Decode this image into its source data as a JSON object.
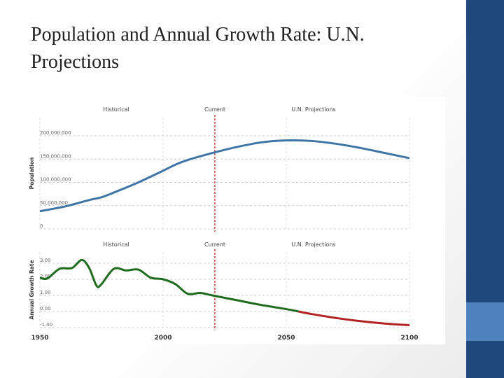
{
  "slide": {
    "title": "Population and Annual Growth Rate: U.N. Projections"
  },
  "theme": {
    "sidebar": "#1f497d",
    "accent": "#4f81bd"
  },
  "chart_data": [
    {
      "type": "line",
      "ylabel": "Population",
      "xlim": [
        1950,
        2100
      ],
      "ylim": [
        0,
        200000000
      ],
      "section_labels": [
        "Historical",
        "Current",
        "U.N. Projections"
      ],
      "current_year": 2021,
      "yticks": [
        "0",
        "50,000,000",
        "100,000,000",
        "150,000,000",
        "200,000,000"
      ],
      "yticks_values": [
        0,
        50000000,
        100000000,
        150000000,
        200000000
      ],
      "grid": true,
      "color": "#3e75a6",
      "x": [
        1950,
        1960,
        1970,
        1975,
        1980,
        1990,
        2000,
        2005,
        2010,
        2020,
        2030,
        2040,
        2050,
        2060,
        2070,
        2080,
        2090,
        2100
      ],
      "values": [
        38000000,
        48000000,
        62000000,
        68000000,
        78000000,
        100000000,
        125000000,
        138000000,
        148000000,
        163000000,
        176000000,
        186000000,
        190000000,
        189000000,
        183000000,
        174000000,
        163000000,
        152000000
      ]
    },
    {
      "type": "line",
      "ylabel": "Annual Growth Rate",
      "xlim": [
        1950,
        2100
      ],
      "ylim": [
        -1,
        3.2
      ],
      "section_labels": [
        "Historical",
        "Current",
        "U.N. Projections"
      ],
      "current_year": 2021,
      "yticks": [
        "-1.00",
        "0.00",
        "1.00",
        "2.00",
        "3.00"
      ],
      "yticks_values": [
        -1,
        0,
        1,
        2,
        3
      ],
      "xticks": [
        "1950",
        "2000",
        "2050",
        "2100"
      ],
      "xticks_values": [
        1950,
        2000,
        2050,
        2100
      ],
      "grid": true,
      "colors": {
        "positive": "#1e6b1e",
        "negative": "#b22222"
      },
      "x": [
        1950,
        1953,
        1958,
        1963,
        1967,
        1970,
        1973,
        1975,
        1980,
        1985,
        1990,
        1995,
        2000,
        2005,
        2010,
        2015,
        2020,
        2030,
        2040,
        2050,
        2055,
        2060,
        2070,
        2080,
        2090,
        2100
      ],
      "values": [
        2.1,
        2.05,
        2.65,
        2.7,
        3.2,
        2.7,
        1.6,
        1.7,
        2.65,
        2.55,
        2.6,
        2.1,
        2.0,
        1.7,
        1.1,
        1.15,
        1.0,
        0.7,
        0.4,
        0.15,
        0.0,
        -0.15,
        -0.4,
        -0.6,
        -0.75,
        -0.85
      ]
    }
  ]
}
